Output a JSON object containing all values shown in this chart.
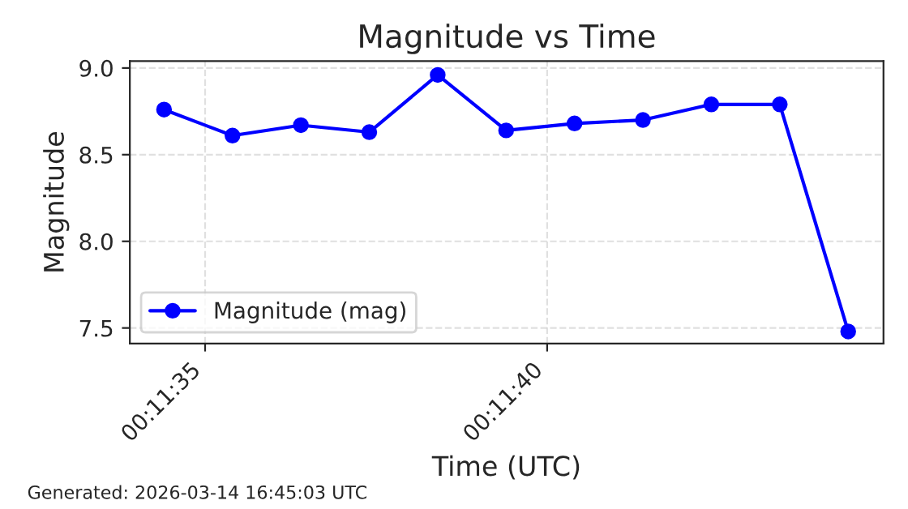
{
  "chart_data": {
    "type": "line",
    "title": "Magnitude vs Time",
    "xlabel": "Time (UTC)",
    "ylabel": "Magnitude",
    "x": [
      0.1928889,
      0.1931667,
      0.1934444,
      0.1937222,
      0.194,
      0.1942778,
      0.1945556,
      0.1948333,
      0.1951111,
      0.1953889,
      0.1956667
    ],
    "series": [
      {
        "name": "Magnitude (mag)",
        "color": "#0000ff",
        "values": [
          8.76,
          8.61,
          8.67,
          8.63,
          8.96,
          8.64,
          8.68,
          8.7,
          8.79,
          8.79,
          7.48
        ]
      }
    ],
    "xlim": [
      0.19275,
      0.19581
    ],
    "xticks": [
      {
        "value": 0.1930556,
        "label": "00:11:35"
      },
      {
        "value": 0.1944444,
        "label": "00:11:40"
      }
    ],
    "ylim": [
      7.41,
      9.04
    ],
    "yticks": [
      {
        "value": 7.5,
        "label": "7.5"
      },
      {
        "value": 8.0,
        "label": "8.0"
      },
      {
        "value": 8.5,
        "label": "8.5"
      },
      {
        "value": 9.0,
        "label": "9.0"
      }
    ],
    "grid": true,
    "legend": "lower left",
    "marker": "circle",
    "line_style": "solid",
    "annotations": [
      "Generated: 2026-03-14 16:45:03 UTC"
    ]
  }
}
